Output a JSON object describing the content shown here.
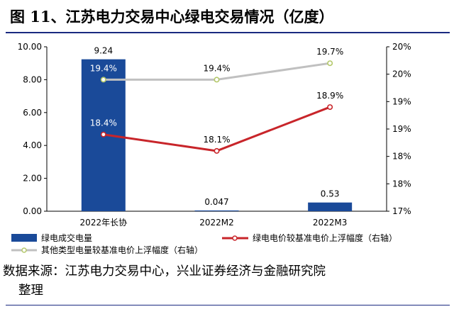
{
  "figure": {
    "title": "图 11、江苏电力交易中心绿电交易情况（亿度）",
    "source_line1": "数据来源：江苏电力交易中心，兴业证券经济与金融研究院",
    "source_line2": "整理"
  },
  "chart_data": {
    "type": "bar+line",
    "categories": [
      "2022年长协",
      "2022M2",
      "2022M3"
    ],
    "left_axis": {
      "min": 0,
      "max": 10,
      "ticks": [
        "0.00",
        "2.00",
        "4.00",
        "6.00",
        "8.00",
        "10.00"
      ]
    },
    "right_axis": {
      "min": 17,
      "max": 20,
      "ticks": [
        "17%",
        "18%",
        "18%",
        "19%",
        "19%",
        "20%",
        "20%"
      ]
    },
    "series": [
      {
        "name": "绿电成交电量",
        "type": "bar",
        "axis": "left",
        "values": [
          9.24,
          0.047,
          0.53
        ],
        "labels": [
          "9.24",
          "0.047",
          "0.53"
        ],
        "color": "#1a4a99"
      },
      {
        "name": "绿电电价较基准电价上浮幅度（右轴）",
        "type": "line",
        "axis": "right",
        "values": [
          18.4,
          18.1,
          18.9
        ],
        "labels": [
          "18.4%",
          "18.1%",
          "18.9%"
        ],
        "color": "#c8252a"
      },
      {
        "name": "其他类型电量较基准电价上浮幅度（右轴）",
        "type": "line",
        "axis": "right",
        "values": [
          19.4,
          19.4,
          19.7
        ],
        "labels": [
          "19.4%",
          "19.4%",
          "19.7%"
        ],
        "color": "#c0c0c0"
      }
    ],
    "grid": false,
    "legend_position": "bottom"
  }
}
